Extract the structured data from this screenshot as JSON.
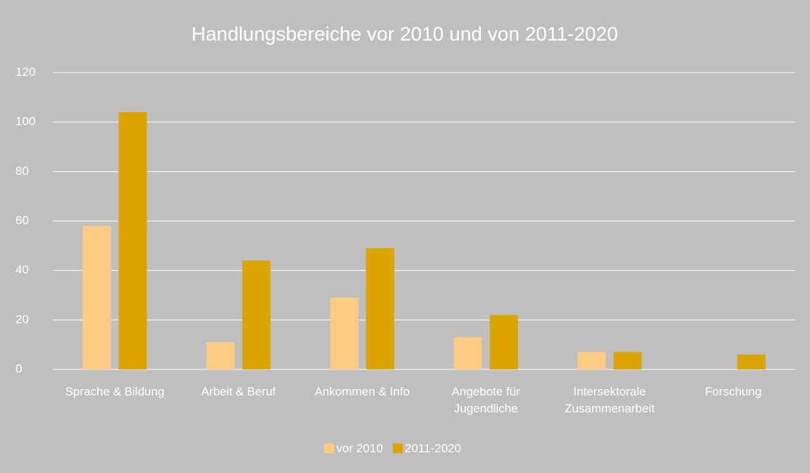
{
  "chart_data": {
    "type": "bar",
    "title": "Handlungsbereiche vor 2010 und von 2011-2020",
    "categories": [
      "Sprache & Bildung",
      "Arbeit & Beruf",
      "Ankommen & Info",
      "Angebote für Jugendliche",
      "Intersektorale Zusammenarbeit",
      "Forschung"
    ],
    "series": [
      {
        "name": "vor 2010",
        "color": "#fecb82",
        "values": [
          58,
          11,
          29,
          13,
          7,
          0
        ]
      },
      {
        "name": "2011-2020",
        "color": "#dca400",
        "values": [
          104,
          44,
          49,
          22,
          7,
          6
        ]
      }
    ],
    "ylim": [
      0,
      120
    ],
    "yticks": [
      0,
      20,
      40,
      60,
      80,
      100,
      120
    ],
    "grid": true,
    "legend": "bottom"
  }
}
